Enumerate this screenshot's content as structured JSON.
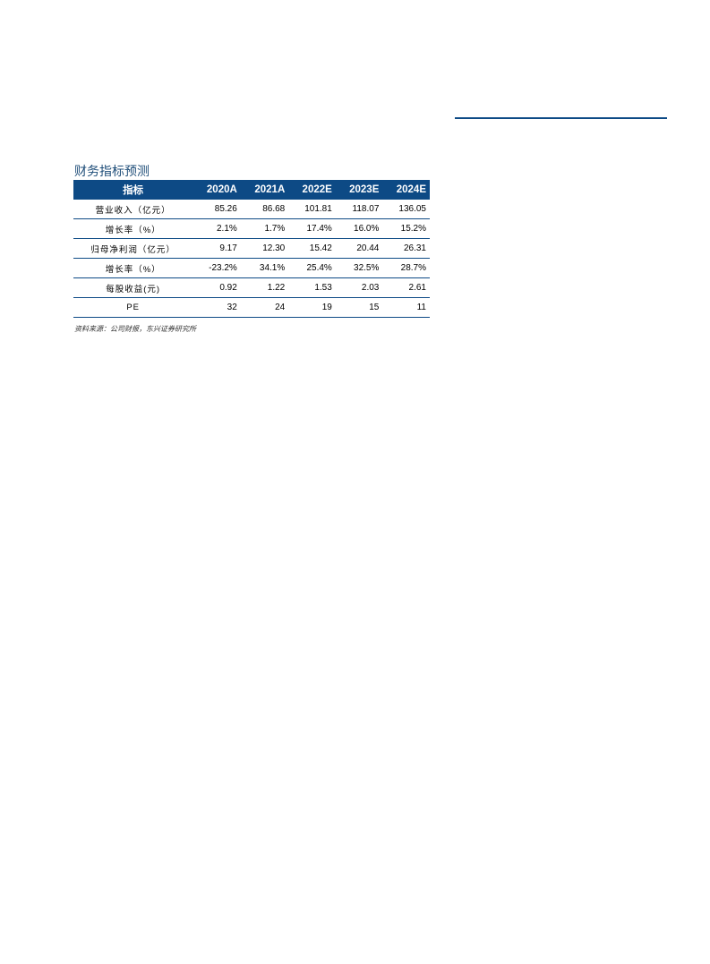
{
  "title": "财务指标预测",
  "table": {
    "headers": [
      "指标",
      "2020A",
      "2021A",
      "2022E",
      "2023E",
      "2024E"
    ],
    "rows": [
      [
        "营业收入（亿元）",
        "85.26",
        "86.68",
        "101.81",
        "118.07",
        "136.05"
      ],
      [
        "增长率（%）",
        "2.1%",
        "1.7%",
        "17.4%",
        "16.0%",
        "15.2%"
      ],
      [
        "归母净利润（亿元）",
        "9.17",
        "12.30",
        "15.42",
        "20.44",
        "26.31"
      ],
      [
        "增长率（%）",
        "-23.2%",
        "34.1%",
        "25.4%",
        "32.5%",
        "28.7%"
      ],
      [
        "每股收益(元)",
        "0.92",
        "1.22",
        "1.53",
        "2.03",
        "2.61"
      ],
      [
        "PE",
        "32",
        "24",
        "19",
        "15",
        "11"
      ]
    ]
  },
  "source": "资料来源：公司财报，东兴证券研究所",
  "colors": {
    "accent": "#0d4a85"
  }
}
